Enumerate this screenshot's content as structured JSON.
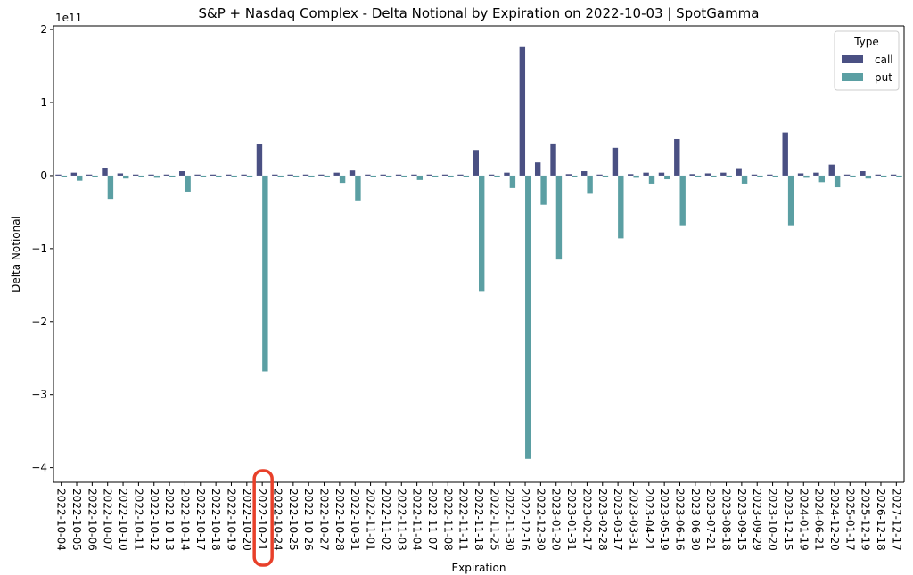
{
  "chart_data": {
    "type": "bar",
    "title": "S&P + Nasdaq Complex - Delta Notional by Expiration on 2022-10-03 | SpotGamma",
    "xlabel": "Expiration",
    "ylabel": "Delta Notional",
    "offset_label": "1e11",
    "yscale_factor": 100000000000,
    "ylim": [
      -4.2,
      2.05
    ],
    "yticks": [
      2,
      1,
      0,
      -1,
      -2,
      -3,
      -4
    ],
    "ytick_labels": [
      "2",
      "1",
      "0",
      "−1",
      "−2",
      "−3",
      "−4"
    ],
    "legend": {
      "title": "Type",
      "placement": "top-right"
    },
    "categories": [
      "2022-10-04",
      "2022-10-05",
      "2022-10-06",
      "2022-10-07",
      "2022-10-10",
      "2022-10-11",
      "2022-10-12",
      "2022-10-13",
      "2022-10-14",
      "2022-10-17",
      "2022-10-18",
      "2022-10-19",
      "2022-10-20",
      "2022-10-21",
      "2022-10-24",
      "2022-10-25",
      "2022-10-26",
      "2022-10-27",
      "2022-10-28",
      "2022-10-31",
      "2022-11-01",
      "2022-11-02",
      "2022-11-03",
      "2022-11-04",
      "2022-11-07",
      "2022-11-08",
      "2022-11-11",
      "2022-11-18",
      "2022-11-25",
      "2022-11-30",
      "2022-12-16",
      "2022-12-30",
      "2023-01-20",
      "2023-01-31",
      "2023-02-17",
      "2023-02-28",
      "2023-03-17",
      "2023-03-31",
      "2023-04-21",
      "2023-05-19",
      "2023-06-16",
      "2023-06-30",
      "2023-07-21",
      "2023-08-18",
      "2023-09-15",
      "2023-09-29",
      "2023-10-20",
      "2023-12-15",
      "2024-01-19",
      "2024-06-21",
      "2024-12-20",
      "2025-01-17",
      "2025-12-19",
      "2026-12-18",
      "2027-12-17"
    ],
    "series": [
      {
        "name": "call",
        "color": "#4a5083",
        "values": [
          0.01,
          0.04,
          0.01,
          0.1,
          0.03,
          0.01,
          0.01,
          0.0,
          0.06,
          0.01,
          0.0,
          0.01,
          0.0,
          0.43,
          0.0,
          0.0,
          0.0,
          0.0,
          0.04,
          0.07,
          0.0,
          0.0,
          0.0,
          0.01,
          0.0,
          0.0,
          0.0,
          0.35,
          0.0,
          0.04,
          1.76,
          0.18,
          0.44,
          0.02,
          0.06,
          0.0,
          0.38,
          0.02,
          0.04,
          0.04,
          0.5,
          0.02,
          0.03,
          0.04,
          0.09,
          0.0,
          0.0,
          0.59,
          0.03,
          0.04,
          0.15,
          0.0,
          0.06,
          0.01,
          0.01
        ]
      },
      {
        "name": "put",
        "color": "#5b9fa3",
        "values": [
          -0.02,
          -0.07,
          -0.01,
          -0.32,
          -0.04,
          -0.01,
          -0.03,
          -0.01,
          -0.22,
          -0.02,
          -0.01,
          -0.02,
          -0.01,
          -2.68,
          -0.01,
          -0.01,
          -0.01,
          -0.01,
          -0.1,
          -0.34,
          -0.01,
          -0.01,
          -0.01,
          -0.06,
          -0.01,
          -0.01,
          -0.01,
          -1.58,
          -0.01,
          -0.17,
          -3.88,
          -0.4,
          -1.15,
          -0.02,
          -0.25,
          -0.01,
          -0.86,
          -0.03,
          -0.11,
          -0.05,
          -0.68,
          -0.02,
          -0.02,
          -0.02,
          -0.11,
          -0.01,
          -0.01,
          -0.68,
          -0.03,
          -0.09,
          -0.16,
          -0.01,
          -0.04,
          -0.02,
          -0.02
        ]
      }
    ],
    "annotation": {
      "type": "highlight-circle",
      "target_category": "2022-10-21",
      "color": "#e8402a"
    }
  }
}
